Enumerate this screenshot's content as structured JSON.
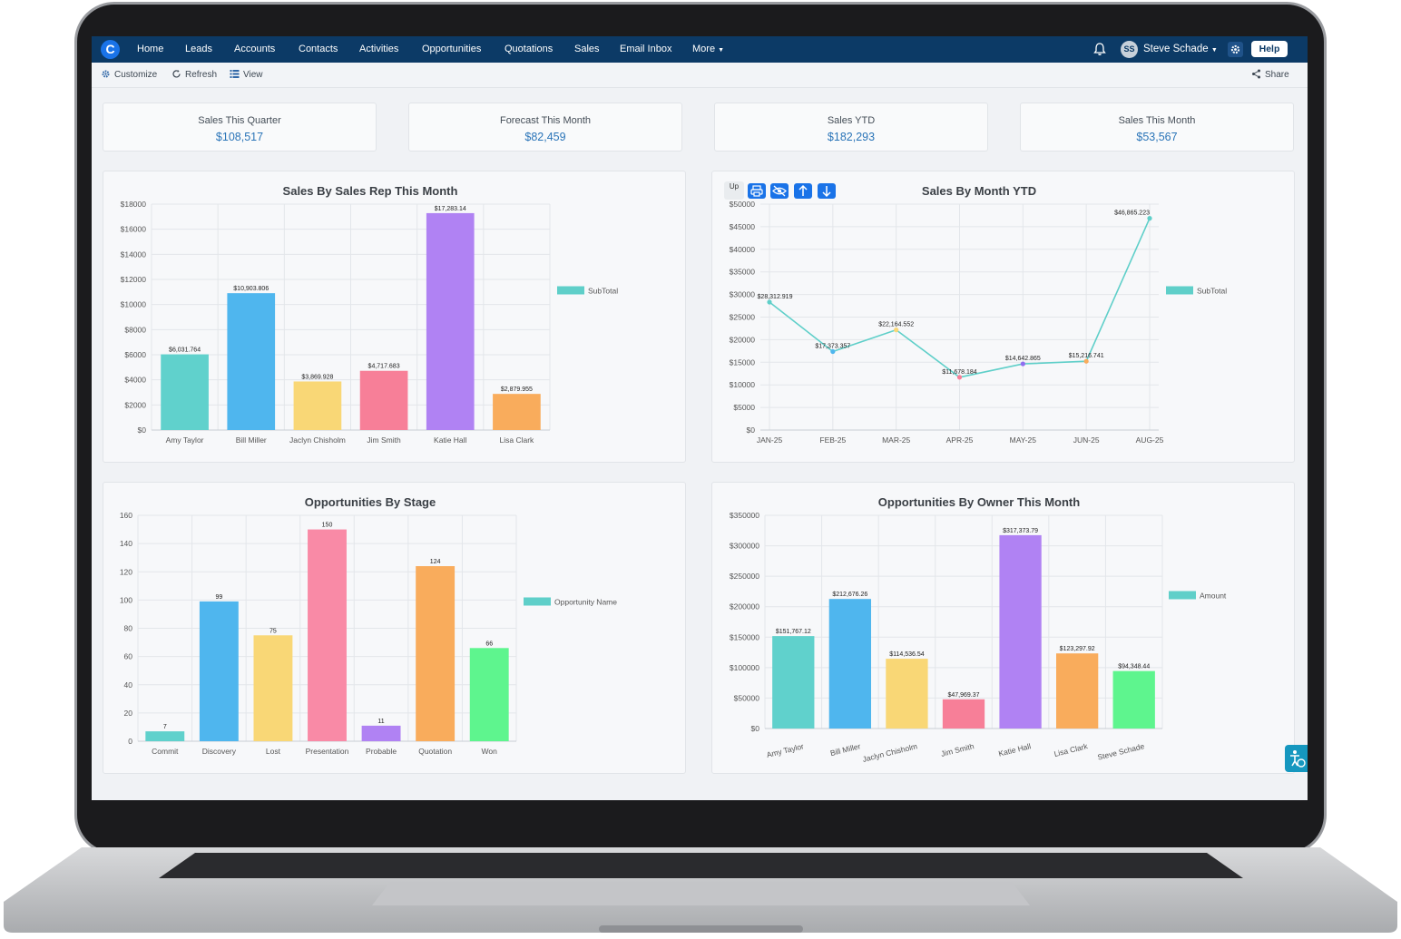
{
  "nav": {
    "logo": "C",
    "items": [
      "Home",
      "Leads",
      "Accounts",
      "Contacts",
      "Activities",
      "Opportunities",
      "Quotations",
      "Sales",
      "Email Inbox",
      "More"
    ],
    "user_initials": "SS",
    "user_name": "Steve Schade",
    "help_label": "Help"
  },
  "toolbar": {
    "customize": "Customize",
    "refresh": "Refresh",
    "view": "View",
    "share": "Share"
  },
  "kpis": [
    {
      "label": "Sales This Quarter",
      "value": "$108,517"
    },
    {
      "label": "Forecast This Month",
      "value": "$82,459"
    },
    {
      "label": "Sales YTD",
      "value": "$182,293"
    },
    {
      "label": "Sales This Month",
      "value": "$53,567"
    }
  ],
  "chart_tools": {
    "up_label": "Up"
  },
  "chart_data": [
    {
      "type": "bar",
      "title": "Sales By Sales Rep This Month",
      "categories": [
        "Amy Taylor",
        "Bill Miller",
        "Jaclyn Chisholm",
        "Jim Smith",
        "Katie Hall",
        "Lisa Clark"
      ],
      "values": [
        6031.764,
        10903.806,
        3869.928,
        4717.683,
        17283.14,
        2879.955
      ],
      "value_labels": [
        "$6,031.764",
        "$10,903.806",
        "$3,869.928",
        "$4,717.683",
        "$17,283.14",
        "$2,879.955"
      ],
      "colors": [
        "#60d1cc",
        "#4fb6ee",
        "#f9d776",
        "#f77f98",
        "#b082f3",
        "#f9ac5c"
      ],
      "y_ticks": [
        "$0",
        "$2000",
        "$4000",
        "$6000",
        "$8000",
        "$10000",
        "$12000",
        "$14000",
        "$16000",
        "$18000"
      ],
      "ylim": [
        0,
        18000
      ],
      "legend": "SubTotal",
      "legend_color": "#5fcfc9",
      "grid": true,
      "legend_position": "right"
    },
    {
      "type": "line",
      "title": "Sales By Month YTD",
      "categories": [
        "JAN-25",
        "FEB-25",
        "MAR-25",
        "APR-25",
        "MAY-25",
        "JUN-25",
        "AUG-25"
      ],
      "values": [
        28312.919,
        17373.357,
        22164.552,
        11678.184,
        14642.865,
        15216.741,
        46865.223
      ],
      "value_labels": [
        "$28,312.919",
        "$17,373.357",
        "$22,164.552",
        "$11,678.184",
        "$14,642.865",
        "$15,216.741",
        "$46,865.223"
      ],
      "point_colors": [
        "#5fcfc9",
        "#4fb6ee",
        "#f9d776",
        "#f77f98",
        "#8f6ef0",
        "#f9ac5c",
        "#5fcfc9"
      ],
      "y_ticks": [
        "$0",
        "$5000",
        "$10000",
        "$15000",
        "$20000",
        "$25000",
        "$30000",
        "$35000",
        "$40000",
        "$45000",
        "$50000"
      ],
      "ylim": [
        0,
        50000
      ],
      "legend": "SubTotal",
      "legend_color": "#5fcfc9",
      "line_color": "#5fcfc9",
      "grid": true,
      "legend_position": "right"
    },
    {
      "type": "bar",
      "title": "Opportunities By Stage",
      "categories": [
        "Commit",
        "Discovery",
        "Lost",
        "Presentation",
        "Probable",
        "Quotation",
        "Won"
      ],
      "values": [
        7,
        99,
        75,
        150,
        11,
        124,
        66
      ],
      "value_labels": [
        "7",
        "99",
        "75",
        "150",
        "11",
        "124",
        "66"
      ],
      "colors": [
        "#60d1cc",
        "#4fb6ee",
        "#f9d776",
        "#f98aa6",
        "#b082f3",
        "#f9ac5c",
        "#5ef58e"
      ],
      "y_ticks": [
        "0",
        "20",
        "40",
        "60",
        "80",
        "100",
        "120",
        "140",
        "160"
      ],
      "ylim": [
        0,
        160
      ],
      "legend": "Opportunity Name",
      "legend_color": "#5fcfc9",
      "grid": true,
      "legend_position": "right"
    },
    {
      "type": "bar",
      "title": "Opportunities By Owner This Month",
      "categories": [
        "Amy Taylor",
        "Bill Miller",
        "Jaclyn Chisholm",
        "Jim Smith",
        "Katie Hall",
        "Lisa Clark",
        "Steve Schade"
      ],
      "values": [
        151767.12,
        212676.26,
        114536.54,
        47969.37,
        317373.79,
        123297.92,
        94348.44
      ],
      "value_labels": [
        "$151,767.12",
        "$212,676.26",
        "$114,536.54",
        "$47,969.37",
        "$317,373.79",
        "$123,297.92",
        "$94,348.44"
      ],
      "colors": [
        "#60d1cc",
        "#4fb6ee",
        "#f9d776",
        "#f77f98",
        "#b082f3",
        "#f9ac5c",
        "#5ef58e"
      ],
      "y_ticks": [
        "$0",
        "$50000",
        "$100000",
        "$150000",
        "$200000",
        "$250000",
        "$300000",
        "$350000"
      ],
      "ylim": [
        0,
        350000
      ],
      "legend": "Amount",
      "legend_color": "#5fcfc9",
      "grid": true,
      "legend_position": "right"
    }
  ]
}
